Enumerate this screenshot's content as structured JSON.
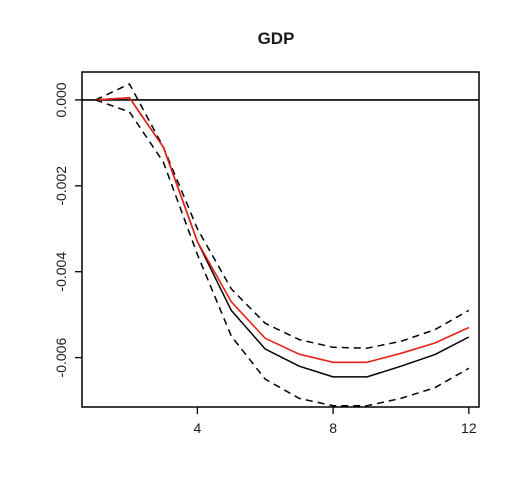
{
  "chart_data": {
    "type": "line",
    "title": "GDP",
    "xlabel": "",
    "ylabel": "",
    "xlim": [
      0.6,
      12.3
    ],
    "ylim": [
      -0.00715,
      0.00065
    ],
    "x_ticks": [
      4,
      8,
      12
    ],
    "x_tick_labels": [
      "4",
      "8",
      "12"
    ],
    "y_ticks": [
      0.0,
      -0.002,
      -0.004,
      -0.006
    ],
    "y_tick_labels": [
      "0.000",
      "-0.002",
      "-0.004",
      "-0.006"
    ],
    "grid": false,
    "legend": "none",
    "x": [
      1,
      2,
      3,
      4,
      5,
      6,
      7,
      8,
      9,
      10,
      11,
      12
    ],
    "series": [
      {
        "style": "dashed",
        "color": "#000000",
        "values": [
          0.0,
          0.00037,
          -0.0011,
          -0.003,
          -0.0044,
          -0.0052,
          -0.00558,
          -0.00576,
          -0.00578,
          -0.00562,
          -0.00535,
          -0.0049
        ]
      },
      {
        "style": "solid",
        "color": "#000000",
        "values": [
          0.0,
          5e-05,
          -0.0011,
          -0.0033,
          -0.0049,
          -0.0058,
          -0.0062,
          -0.00645,
          -0.00645,
          -0.0062,
          -0.00593,
          -0.00552
        ]
      },
      {
        "style": "solid",
        "color": "#e8231a",
        "values": [
          0.0,
          5e-05,
          -0.0011,
          -0.0033,
          -0.0047,
          -0.00555,
          -0.00592,
          -0.00611,
          -0.00611,
          -0.0059,
          -0.00566,
          -0.0053
        ]
      },
      {
        "style": "dashed",
        "color": "#000000",
        "values": [
          0.0,
          -0.00028,
          -0.00145,
          -0.0036,
          -0.0055,
          -0.0065,
          -0.00695,
          -0.00712,
          -0.00712,
          -0.00695,
          -0.0067,
          -0.00625
        ]
      }
    ],
    "reference_lines": [
      {
        "orientation": "horizontal",
        "y": 0.0,
        "style": "solid",
        "color": "#000000"
      }
    ]
  }
}
